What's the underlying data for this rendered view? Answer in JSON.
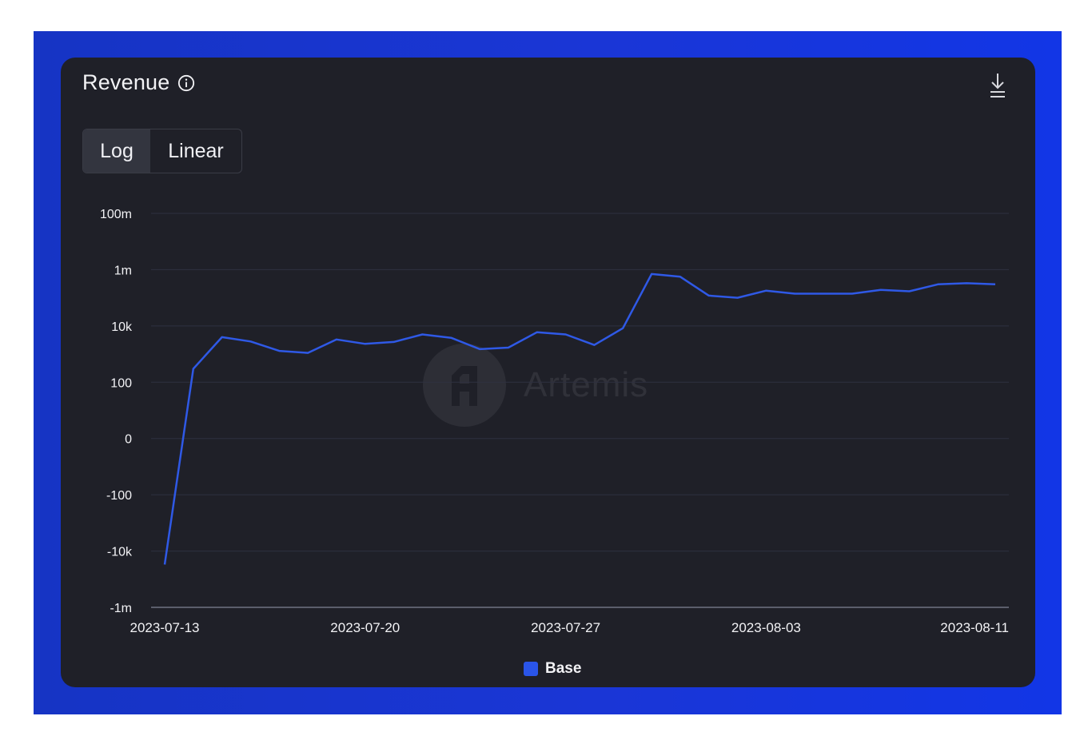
{
  "colors": {
    "frame": "#1a36d6",
    "card": "#1f2028",
    "line": "#2f59e6",
    "grid": "#2e3140",
    "text": "#f2f2f5"
  },
  "header": {
    "title": "Revenue",
    "info_icon": "info-circle-icon",
    "download_icon": "download-icon"
  },
  "scale_toggle": {
    "options": [
      "Log",
      "Linear"
    ],
    "selected": "Log"
  },
  "watermark": {
    "text": "Artemis",
    "icon": "artemis-logo-icon"
  },
  "chart_data": {
    "type": "line",
    "title": "Revenue",
    "y_scale": "symlog",
    "grid": true,
    "legend_position": "bottom-center",
    "y_ticks": [
      {
        "label": "100m",
        "value": 100000000
      },
      {
        "label": "1m",
        "value": 1000000
      },
      {
        "label": "10k",
        "value": 10000
      },
      {
        "label": "100",
        "value": 100
      },
      {
        "label": "0",
        "value": 0
      },
      {
        "label": "-100",
        "value": -100
      },
      {
        "label": "-10k",
        "value": -10000
      },
      {
        "label": "-1m",
        "value": -1000000
      }
    ],
    "x_ticks": [
      "2023-07-13",
      "2023-07-20",
      "2023-07-27",
      "2023-08-03",
      "2023-08-11"
    ],
    "x_range": [
      "2023-07-13",
      "2023-08-11"
    ],
    "series": [
      {
        "name": "Base",
        "color": "#2f59e6",
        "x": [
          "2023-07-13",
          "2023-07-14",
          "2023-07-15",
          "2023-07-16",
          "2023-07-17",
          "2023-07-18",
          "2023-07-19",
          "2023-07-20",
          "2023-07-21",
          "2023-07-22",
          "2023-07-23",
          "2023-07-24",
          "2023-07-25",
          "2023-07-26",
          "2023-07-27",
          "2023-07-28",
          "2023-07-29",
          "2023-07-30",
          "2023-07-31",
          "2023-08-01",
          "2023-08-02",
          "2023-08-03",
          "2023-08-04",
          "2023-08-05",
          "2023-08-06",
          "2023-08-07",
          "2023-08-08",
          "2023-08-09",
          "2023-08-10",
          "2023-08-11"
        ],
        "values": [
          -30000,
          300,
          4000,
          2800,
          1300,
          1100,
          3300,
          2300,
          2700,
          5000,
          3800,
          1500,
          1700,
          6000,
          5000,
          2100,
          8300,
          700000,
          560000,
          120000,
          100000,
          180000,
          140000,
          140000,
          140000,
          190000,
          170000,
          300000,
          330000,
          300000
        ]
      }
    ]
  }
}
